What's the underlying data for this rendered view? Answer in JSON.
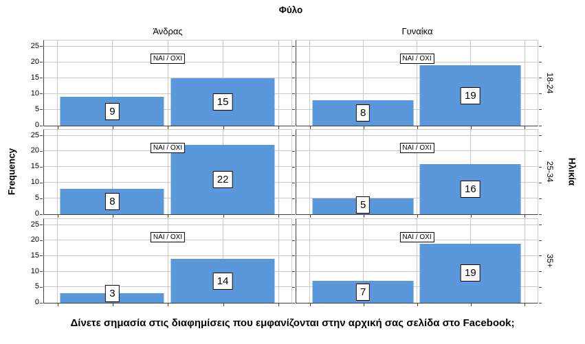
{
  "chart_data": {
    "type": "bar",
    "title": "Φύλο",
    "xlabel": "Δίνετε σημασία στις διαφημίσεις που εμφανίζονται στην αρχική σας σελίδα στο Facebook;",
    "ylabel": "Frequency",
    "row_axis_label": "Ηλικία",
    "facet_columns": [
      "Άνδρας",
      "Γυναίκα"
    ],
    "facet_rows": [
      "18-24",
      "25-34",
      "35+"
    ],
    "categories": [
      "ΝΑΙ",
      "ΟΧΙ"
    ],
    "category_axis_label": "ΝΑΙ / ΟΧΙ",
    "y_ticks": [
      0,
      5,
      10,
      15,
      20,
      25
    ],
    "ylim": [
      0,
      25
    ],
    "grid": true,
    "bar_color": "#5b97db",
    "panels": [
      {
        "row": "18-24",
        "column": "Άνδρας",
        "values": [
          9,
          15
        ]
      },
      {
        "row": "18-24",
        "column": "Γυναίκα",
        "values": [
          8,
          19
        ]
      },
      {
        "row": "25-34",
        "column": "Άνδρας",
        "values": [
          8,
          22
        ]
      },
      {
        "row": "25-34",
        "column": "Γυναίκα",
        "values": [
          5,
          16
        ]
      },
      {
        "row": "35+",
        "column": "Άνδρας",
        "values": [
          3,
          14
        ]
      },
      {
        "row": "35+",
        "column": "Γυναίκα",
        "values": [
          7,
          19
        ]
      }
    ]
  }
}
